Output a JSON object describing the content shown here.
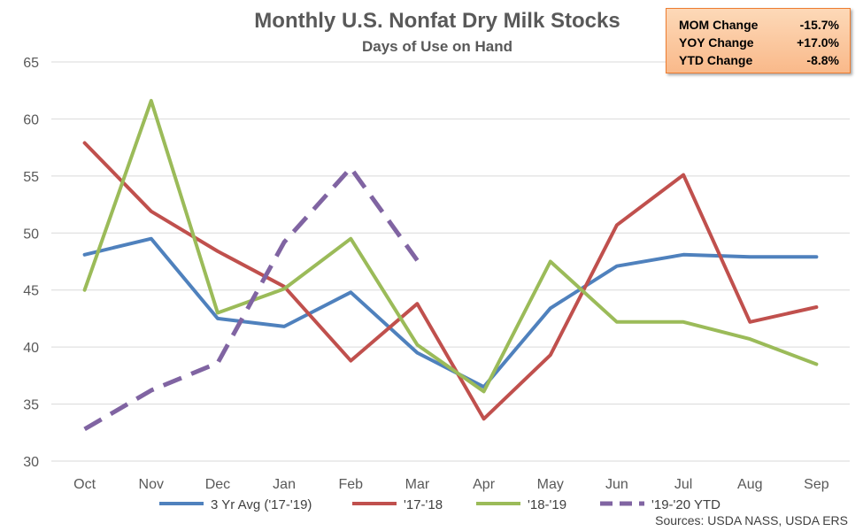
{
  "chart_data": {
    "type": "line",
    "title": "Monthly U.S. Nonfat Dry Milk Stocks",
    "subtitle": "Days of Use on Hand",
    "categories": [
      "Oct",
      "Nov",
      "Dec",
      "Jan",
      "Feb",
      "Mar",
      "Apr",
      "May",
      "Jun",
      "Jul",
      "Aug",
      "Sep"
    ],
    "ylim": [
      30,
      65
    ],
    "yticks": [
      30,
      35,
      40,
      45,
      50,
      55,
      60,
      65
    ],
    "grid": true,
    "legend_position": "bottom",
    "series": [
      {
        "name": "3 Yr Avg ('17-'19)",
        "color": "#4f81bd",
        "dashed": false,
        "values": [
          48.1,
          49.5,
          42.5,
          41.8,
          44.8,
          39.5,
          36.5,
          43.4,
          47.1,
          48.1,
          47.9,
          47.9
        ]
      },
      {
        "name": "'17-'18",
        "color": "#c0504d",
        "dashed": false,
        "values": [
          57.9,
          51.9,
          48.4,
          45.3,
          38.8,
          43.8,
          33.7,
          39.3,
          50.7,
          55.1,
          42.2,
          43.5
        ]
      },
      {
        "name": "'18-'19",
        "color": "#9bbb59",
        "dashed": false,
        "values": [
          45.0,
          61.6,
          43.0,
          45.1,
          49.5,
          40.2,
          36.1,
          47.5,
          42.2,
          42.2,
          40.7,
          38.5
        ]
      },
      {
        "name": "'19-'20 YTD",
        "color": "#8064a2",
        "dashed": true,
        "values": [
          32.8,
          36.2,
          38.6,
          49.2,
          55.7,
          47.6,
          null,
          null,
          null,
          null,
          null,
          null
        ]
      }
    ]
  },
  "summary": [
    {
      "label": "MOM Change",
      "value": "-15.7%"
    },
    {
      "label": "YOY Change",
      "value": "+17.0%"
    },
    {
      "label": "YTD Change",
      "value": "-8.8%"
    }
  ],
  "source": "Sources: USDA NASS, USDA ERS"
}
